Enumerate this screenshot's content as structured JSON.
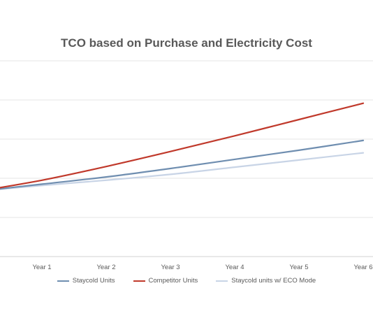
{
  "chart_data": {
    "type": "line",
    "title": "TCO based on Purchase and Electricity Cost",
    "categories": [
      "",
      "Year 1",
      "Year 2",
      "Year 3",
      "Year 4",
      "Year 5",
      "Year 6"
    ],
    "series": [
      {
        "name": "Staycold Units",
        "color": "#6f8eb0",
        "values": [
          100,
          111,
          122,
          135,
          149,
          163,
          178
        ]
      },
      {
        "name": "Competitor Units",
        "color": "#c0392b",
        "values": [
          100,
          117,
          138,
          161,
          185,
          210,
          235
        ]
      },
      {
        "name": "Staycold units w/ ECO Mode",
        "color": "#c8d4e6",
        "values": [
          100,
          109,
          117,
          126,
          137,
          148,
          159
        ]
      }
    ],
    "ylim": [
      0,
      300
    ],
    "grid": true,
    "legend": "bottom"
  }
}
